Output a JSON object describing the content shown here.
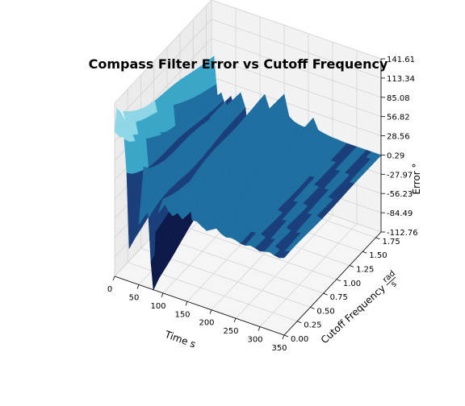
{
  "chart_data": {
    "type": "surface",
    "title": "Compass Filter Error vs Cutoff Frequency",
    "xlabel": "Time s",
    "ylabel": "Cutoff Frequency",
    "ylabel_unit_num": "rad",
    "ylabel_unit_den": "s",
    "zlabel": "Error °",
    "xlim": [
      0,
      350
    ],
    "ylim": [
      0,
      1.85
    ],
    "zlim": [
      -112.76,
      141.61
    ],
    "x_ticks": [
      "0",
      "50",
      "100",
      "150",
      "200",
      "250",
      "300",
      "350"
    ],
    "y_ticks": [
      "0.00",
      "0.25",
      "0.50",
      "0.75",
      "1.00",
      "1.25",
      "1.50",
      "1.75"
    ],
    "z_ticks": [
      "141.61",
      "113.34",
      "85.08",
      "56.82",
      "28.56",
      "0.29",
      "-27.97",
      "-56.23",
      "-84.49",
      "-112.76"
    ],
    "grid": true,
    "colormap": [
      "#0d1a4a",
      "#1a3f7a",
      "#1f6fa0",
      "#3aa6c8",
      "#8fd6e6",
      "#e8f8ff"
    ],
    "low_color": "#2e8b3a",
    "surface_profiles": {
      "times": [
        0,
        5,
        10,
        15,
        20,
        25,
        30,
        40,
        50,
        60,
        65,
        70,
        75,
        80,
        85,
        90,
        100,
        110,
        120,
        130,
        140,
        150,
        160,
        170,
        180,
        190,
        200,
        210,
        220,
        230,
        240,
        250,
        260,
        270,
        280,
        290,
        300,
        310,
        320,
        330,
        340,
        350
      ],
      "low_cutoff": [
        100,
        130,
        135,
        120,
        90,
        40,
        -60,
        20,
        -30,
        60,
        30,
        -10,
        -80,
        -112,
        -20,
        0,
        20,
        15,
        10,
        8,
        5,
        60,
        10,
        8,
        5,
        3,
        5,
        8,
        5,
        3,
        2,
        1,
        1,
        0,
        0,
        0,
        0,
        0,
        0,
        0,
        0,
        0
      ],
      "high_cutoff": [
        -10,
        60,
        20,
        -20,
        10,
        0,
        -20,
        10,
        -10,
        20,
        10,
        0,
        -30,
        -50,
        -10,
        0,
        5,
        30,
        10,
        5,
        3,
        40,
        10,
        5,
        3,
        2,
        5,
        20,
        5,
        3,
        2,
        1,
        1,
        0,
        0,
        0,
        0,
        0,
        0,
        0,
        0,
        0
      ]
    }
  }
}
